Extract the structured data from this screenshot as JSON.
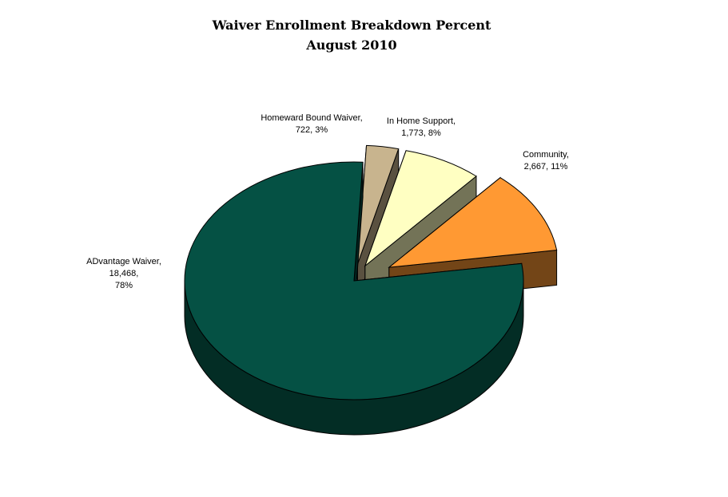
{
  "chart_data": {
    "type": "pie",
    "style": "3d-exploded",
    "title": "Waiver Enrollment Breakdown Percent",
    "subtitle": "August 2010",
    "slices": [
      {
        "name": "ADvantage Waiver",
        "value": 18468,
        "percent": 78,
        "color": "#055144",
        "label_lines": [
          "ADvantage Waiver,",
          "18,468,",
          "78%"
        ]
      },
      {
        "name": "Homeward Bound Waiver",
        "value": 722,
        "percent": 3,
        "color": "#C8B48E",
        "label_lines": [
          "Homeward Bound Waiver,",
          "722, 3%"
        ]
      },
      {
        "name": "In Home Support",
        "value": 1773,
        "percent": 8,
        "color": "#FFFFC2",
        "label_lines": [
          "In Home Support,",
          "1,773, 8%"
        ]
      },
      {
        "name": "Community",
        "value": 2667,
        "percent": 11,
        "color": "#FF9933",
        "label_lines": [
          "Community,",
          "2,667, 11%"
        ]
      }
    ],
    "legend": "none",
    "data_labels": "outside, category name, value, percent"
  }
}
